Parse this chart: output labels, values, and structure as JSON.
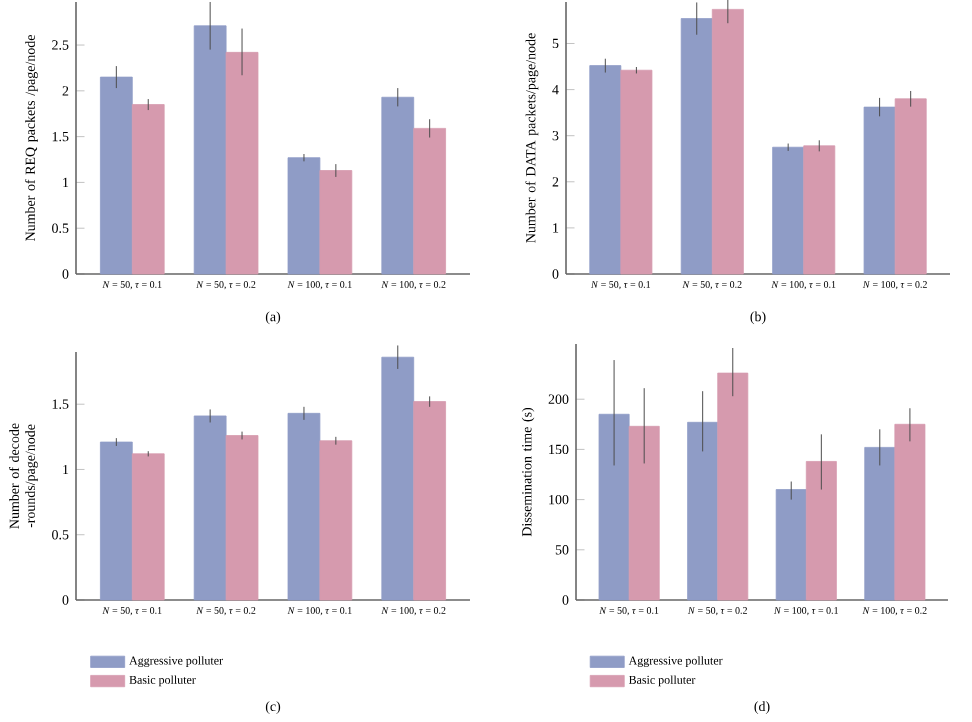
{
  "chart_data": [
    {
      "type": "bar",
      "ylabel": "Number of REQ packets /page/node",
      "categories": [
        "*N* = 50, *τ* = 0.1",
        "*N* = 50, *τ* = 0.2",
        "*N* = 100, *τ* = 0.1",
        "*N* = 100, *τ* = 0.2"
      ],
      "series": [
        {
          "color": "#8f9cc6",
          "values": [
            2.15,
            2.71,
            1.27,
            1.93
          ],
          "errors": [
            0.12,
            [
              2.45,
              2.97
            ],
            0.04,
            0.1
          ]
        },
        {
          "color": "#d69aae",
          "values": [
            1.85,
            2.42,
            1.13,
            1.59
          ],
          "errors": [
            0.06,
            [
              2.17,
              2.68
            ],
            0.07,
            0.1
          ]
        }
      ],
      "ylim": [
        0,
        2.97
      ],
      "yticks": [
        0,
        0.5,
        1,
        1.5,
        2,
        2.5
      ],
      "legend": false,
      "annotations": [
        "(a)"
      ]
    },
    {
      "type": "bar",
      "ylabel": "Number of DATA packets/page/node",
      "categories": [
        "*N* = 50, *τ* = 0.1",
        "*N* = 50, *τ* = 0.2",
        "*N* = 100, *τ* = 0.1",
        "*N* = 100, *τ* = 0.2"
      ],
      "series": [
        {
          "color": "#8f9cc6",
          "values": [
            4.52,
            5.54,
            2.75,
            3.62
          ],
          "errors": [
            0.15,
            0.35,
            0.08,
            0.2
          ]
        },
        {
          "color": "#d69aae",
          "values": [
            4.42,
            5.74,
            2.78,
            3.8
          ],
          "errors": [
            0.07,
            0.3,
            0.12,
            0.17
          ]
        }
      ],
      "ylim": [
        0,
        5.9
      ],
      "yticks": [
        0,
        1,
        2,
        3,
        4,
        5
      ],
      "legend": false,
      "annotations": [
        "(b)"
      ]
    },
    {
      "type": "bar",
      "ylabel": "Number of decode -rounds/page/node",
      "categories": [
        "*N* = 50, *τ* = 0.1",
        "*N* = 50, *τ* = 0.2",
        "*N* = 100, *τ* = 0.1",
        "*N* = 100, *τ* = 0.2"
      ],
      "series": [
        {
          "name": "Aggressive polluter",
          "color": "#8f9cc6",
          "values": [
            1.21,
            1.41,
            1.43,
            1.86
          ],
          "errors": [
            0.03,
            0.05,
            0.05,
            0.09
          ]
        },
        {
          "name": "Basic polluter",
          "color": "#d69aae",
          "values": [
            1.12,
            1.26,
            1.22,
            1.52
          ],
          "errors": [
            0.02,
            0.03,
            0.03,
            0.04
          ]
        }
      ],
      "ylim": [
        0,
        1.9
      ],
      "yticks": [
        0,
        0.5,
        1,
        1.5
      ],
      "legend": "bottom left",
      "annotations": [
        "(c)"
      ]
    },
    {
      "type": "bar",
      "ylabel": "Dissemination time (s)",
      "categories": [
        "*N* = 50, *τ* = 0.1",
        "*N* = 50, *τ* = 0.2",
        "*N* = 100, *τ* = 0.1",
        "*N* = 100, *τ* = 0.2"
      ],
      "series": [
        {
          "name": "Aggressive polluter",
          "color": "#8f9cc6",
          "values": [
            185,
            177,
            110,
            152
          ],
          "errors": [
            [
              134,
              239
            ],
            [
              148,
              208
            ],
            [
              100,
              118
            ],
            [
              134,
              170
            ]
          ]
        },
        {
          "name": "Basic polluter",
          "color": "#d69aae",
          "values": [
            173,
            226,
            138,
            175
          ],
          "errors": [
            [
              136,
              211
            ],
            [
              203,
              251
            ],
            [
              110,
              165
            ],
            [
              158,
              191
            ]
          ]
        }
      ],
      "ylim": [
        0,
        255
      ],
      "yticks": [
        0,
        50,
        100,
        150,
        200
      ],
      "legend": "bottom left",
      "annotations": [
        "(d)"
      ]
    }
  ]
}
